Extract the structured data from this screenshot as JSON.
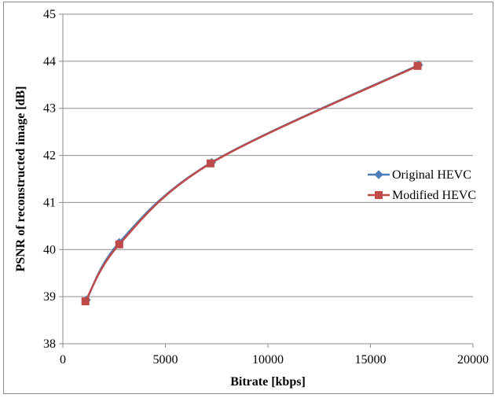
{
  "chart_data": {
    "type": "line",
    "xlabel": "Bitrate [kbps]",
    "ylabel": "PSNR of reconstructed  image [dB]",
    "xlim": [
      0,
      20000
    ],
    "ylim": [
      38,
      45
    ],
    "xticks": [
      0,
      5000,
      10000,
      15000,
      20000
    ],
    "yticks": [
      38,
      39,
      40,
      41,
      42,
      43,
      44,
      45
    ],
    "grid": "horizontal",
    "legend_position": "right",
    "smooth": true,
    "series": [
      {
        "name": "Original HEVC",
        "marker": "diamond",
        "color": "#4a7ebb",
        "x": [
          1150,
          2750,
          7250,
          17350
        ],
        "y": [
          38.93,
          40.15,
          41.85,
          43.92
        ]
      },
      {
        "name": "Modified HEVC",
        "marker": "square",
        "color": "#be4b48",
        "x": [
          1100,
          2750,
          7200,
          17300
        ],
        "y": [
          38.9,
          40.11,
          41.83,
          43.9
        ]
      }
    ]
  }
}
